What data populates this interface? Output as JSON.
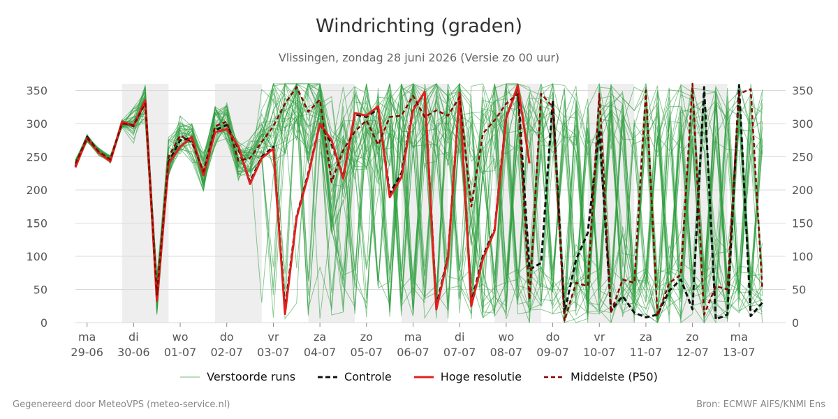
{
  "title": "Windrichting (graden)",
  "subtitle": "Vlissingen, zondag 28 juni 2026 (Versie zo 00 uur)",
  "footer": {
    "left": "Gegenereerd door MeteoVPS (meteo-service.nl)",
    "right": "Bron: ECMWF AIFS/KNMI Ens"
  },
  "legend": [
    {
      "label": "Verstoorde runs",
      "color": "#2e9e3e",
      "style": "thin"
    },
    {
      "label": "Controle",
      "color": "#111111",
      "style": "dashed"
    },
    {
      "label": "Hoge resolutie",
      "color": "#e0201c",
      "style": "solid"
    },
    {
      "label": "Middelste (P50)",
      "color": "#8b0000",
      "style": "dashed"
    }
  ],
  "chart_data": {
    "type": "line",
    "x_unit": "hours since 2026-06-28 18:00",
    "xlim": [
      0,
      366
    ],
    "ylim": [
      0,
      360
    ],
    "y_ticks": [
      0,
      50,
      100,
      150,
      200,
      250,
      300,
      350
    ],
    "grid": true,
    "legend_position": "bottom",
    "x_ticks": [
      {
        "x": 6,
        "day": "ma",
        "date": "29-06"
      },
      {
        "x": 30,
        "day": "di",
        "date": "30-06"
      },
      {
        "x": 54,
        "day": "wo",
        "date": "01-07"
      },
      {
        "x": 78,
        "day": "do",
        "date": "02-07"
      },
      {
        "x": 102,
        "day": "vr",
        "date": "03-07"
      },
      {
        "x": 126,
        "day": "za",
        "date": "04-07"
      },
      {
        "x": 150,
        "day": "zo",
        "date": "05-07"
      },
      {
        "x": 174,
        "day": "ma",
        "date": "06-07"
      },
      {
        "x": 198,
        "day": "di",
        "date": "07-07"
      },
      {
        "x": 222,
        "day": "wo",
        "date": "08-07"
      },
      {
        "x": 246,
        "day": "do",
        "date": "09-07"
      },
      {
        "x": 270,
        "day": "vr",
        "date": "10-07"
      },
      {
        "x": 294,
        "day": "za",
        "date": "11-07"
      },
      {
        "x": 318,
        "day": "zo",
        "date": "12-07"
      },
      {
        "x": 342,
        "day": "ma",
        "date": "13-07"
      }
    ],
    "night_bands": [
      [
        24,
        48
      ],
      [
        72,
        96
      ],
      [
        120,
        144
      ],
      [
        168,
        192
      ],
      [
        216,
        240
      ],
      [
        264,
        288
      ],
      [
        312,
        336
      ]
    ],
    "series": [
      {
        "name": "Hoge resolutie",
        "color": "#e0201c",
        "x": [
          0,
          6,
          12,
          18,
          24,
          30,
          36,
          42,
          48,
          54,
          60,
          66,
          72,
          78,
          84,
          90,
          96,
          102,
          108,
          114,
          120,
          126,
          132,
          138,
          144,
          150,
          156,
          162,
          168,
          174,
          180,
          186,
          192,
          198,
          204,
          210,
          216
        ],
        "y": [
          234,
          278,
          256,
          243,
          303,
          297,
          335,
          33,
          240,
          265,
          280,
          222,
          287,
          292,
          266,
          209,
          248,
          262,
          13,
          158,
          222,
          300,
          275,
          217,
          316,
          312,
          326,
          189,
          219,
          320,
          348,
          20,
          98,
          346,
          25,
          96,
          138
        ]
      },
      {
        "name": "Hoge resolutie (vervolg)",
        "color": "#e0201c",
        "x": [
          216,
          222,
          228,
          234
        ],
        "y": [
          138,
          308,
          358,
          240
        ]
      },
      {
        "name": "Middelste (P50)",
        "color": "#8b0000",
        "x": [
          0,
          6,
          12,
          18,
          24,
          30,
          36,
          42,
          48,
          54,
          60,
          66,
          72,
          78,
          84,
          90,
          96,
          102,
          108,
          114,
          120,
          126,
          132,
          138,
          144,
          150,
          156,
          162,
          168,
          174,
          180,
          186,
          192,
          198,
          204,
          210,
          216,
          222,
          228,
          234,
          240,
          246,
          252,
          258,
          264,
          270,
          276,
          282,
          288,
          294,
          300,
          306,
          312,
          318,
          324,
          330,
          336,
          342,
          348,
          354
        ],
        "y": [
          240,
          278,
          258,
          246,
          300,
          298,
          330,
          42,
          250,
          282,
          272,
          228,
          296,
          303,
          244,
          248,
          272,
          296,
          330,
          355,
          318,
          336,
          212,
          260,
          288,
          305,
          268,
          310,
          312,
          342,
          310,
          320,
          312,
          340,
          175,
          285,
          305,
          330,
          345,
          35,
          345,
          325,
          3,
          60,
          55,
          345,
          15,
          65,
          60,
          350,
          10,
          60,
          72,
          360,
          12,
          55,
          50,
          345,
          352,
          50
        ]
      },
      {
        "name": "Controle",
        "color": "#111111",
        "x": [
          0,
          6,
          12,
          18,
          24,
          30,
          36,
          42,
          48,
          54,
          60,
          66,
          72,
          78,
          84,
          90,
          96,
          102,
          108,
          114,
          120,
          126,
          132,
          138,
          144,
          150,
          156,
          162,
          168,
          174,
          180,
          186,
          192,
          198,
          204,
          210,
          216,
          222,
          228,
          234,
          240,
          246,
          252,
          258,
          264,
          270,
          276,
          282,
          288,
          294,
          300,
          306,
          312,
          318,
          324,
          330,
          336,
          342,
          348,
          354
        ],
        "y": [
          236,
          280,
          257,
          244,
          302,
          296,
          334,
          38,
          242,
          275,
          278,
          224,
          290,
          298,
          262,
          212,
          250,
          265,
          20,
          160,
          225,
          300,
          270,
          220,
          314,
          310,
          322,
          195,
          225,
          322,
          346,
          25,
          100,
          345,
          30,
          100,
          140,
          310,
          355,
          80,
          90,
          335,
          15,
          95,
          135,
          290,
          18,
          40,
          15,
          8,
          12,
          48,
          65,
          20,
          355,
          5,
          12,
          358,
          10,
          30
        ]
      }
    ]
  }
}
